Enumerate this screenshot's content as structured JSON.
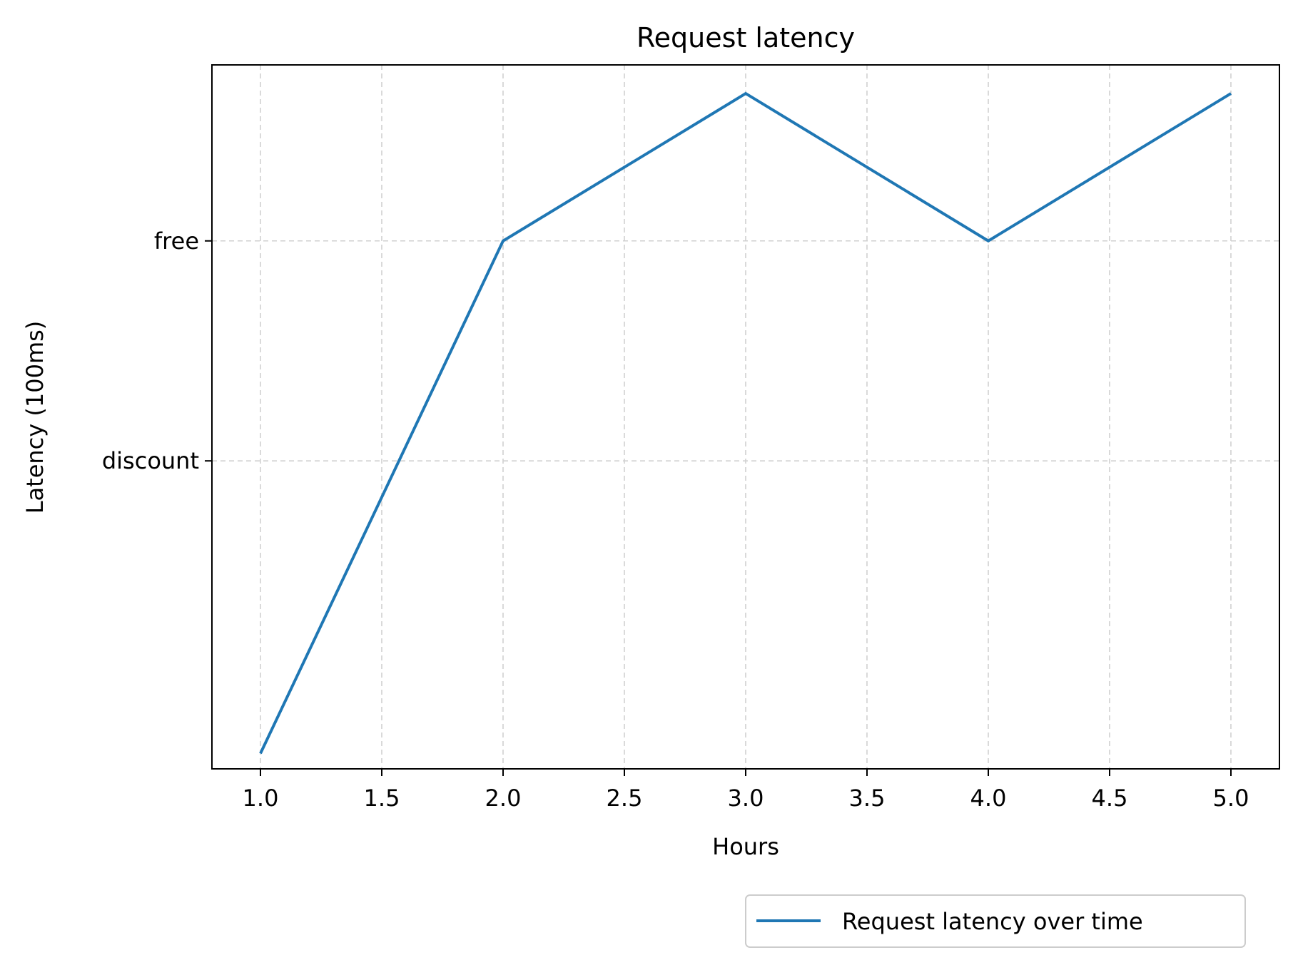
{
  "chart_data": {
    "type": "line",
    "title": "Request latency",
    "xlabel": "Hours",
    "ylabel": "Latency (100ms)",
    "x": [
      1.0,
      2.0,
      3.0,
      4.0,
      5.0
    ],
    "xlim": [
      0.8,
      5.2
    ],
    "ylim": [
      -0.4,
      2.8
    ],
    "xticks": [
      1.0,
      1.5,
      2.0,
      2.5,
      3.0,
      3.5,
      4.0,
      4.5,
      5.0
    ],
    "xtick_labels": [
      "1.0",
      "1.5",
      "2.0",
      "2.5",
      "3.0",
      "3.5",
      "4.0",
      "4.5",
      "5.0"
    ],
    "yticks": [
      1,
      2
    ],
    "ytick_labels": [
      "discount",
      "free"
    ],
    "grid": true,
    "legend_position": "below-right",
    "series": [
      {
        "name": "Request latency over time",
        "values": [
          -0.33,
          2.0,
          2.67,
          2.0,
          2.67
        ],
        "color": "#1f77b4"
      }
    ]
  }
}
